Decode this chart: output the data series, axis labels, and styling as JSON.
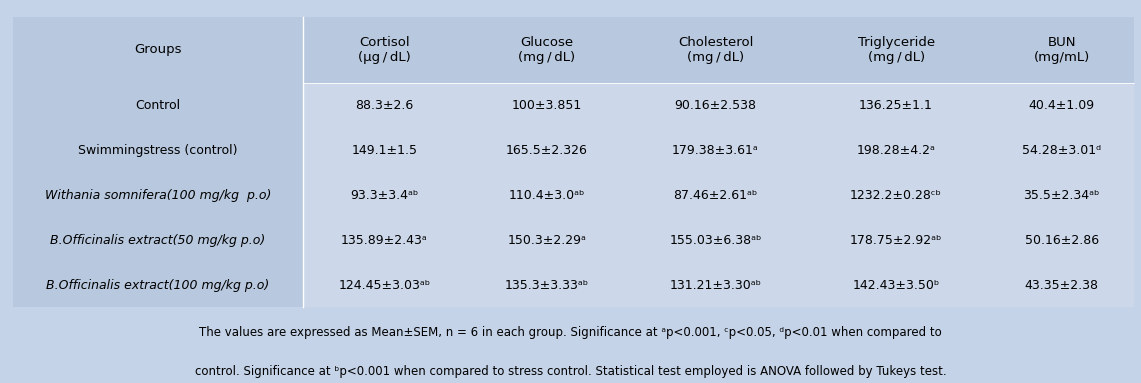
{
  "background_color": "#c5d3e8",
  "table_bg_color": "#b8c8de",
  "data_bg_color": "#ccd8ea",
  "figsize": [
    11.41,
    3.83
  ],
  "dpi": 100,
  "col_headers": [
    "Groups",
    "Cortisol\n(μg / dL)",
    "Glucose\n(mg / dL)",
    "Cholesterol\n(mg / dL)",
    "Triglyceride\n(mg / dL)",
    "BUN\n(mg/mL)"
  ],
  "rows": [
    {
      "group": "Control",
      "group_italic": false,
      "group_underline": false,
      "cortisol": "88.3±2.6",
      "glucose": "100±3.851",
      "cholesterol": "90.16±2.538",
      "triglyceride": "136.25±1.1",
      "bun": "40.4±1.09"
    },
    {
      "group": "Swimmingstress (control)",
      "group_italic": false,
      "group_underline": false,
      "cortisol": "149.1±1.5",
      "glucose": "165.5±2.326",
      "cholesterol": "179.38±3.61ᵃ",
      "triglyceride": "198.28±4.2ᵃ",
      "bun": "54.28±3.01ᵈ"
    },
    {
      "group": "Withania somnifera(100 mg/kg  p.o)",
      "group_italic": true,
      "group_underline": false,
      "cortisol": "93.3±3.4ᵃᵇ",
      "glucose": "110.4±3.0ᵃᵇ",
      "cholesterol": "87.46±2.61ᵃᵇ",
      "triglyceride": "1232.2±0.28ᶜᵇ",
      "bun": "35.5±2.34ᵃᵇ"
    },
    {
      "group": "B.Officinalis extract(50 mg/kg p.o)",
      "group_italic": true,
      "group_underline": true,
      "cortisol": "135.89±2.43ᵃ",
      "glucose": "150.3±2.29ᵃ",
      "cholesterol": "155.03±6.38ᵃᵇ",
      "triglyceride": "178.75±2.92ᵃᵇ",
      "bun": "50.16±2.86"
    },
    {
      "group": "B.Officinalis extract(100 mg/kg p.o)",
      "group_italic": true,
      "group_underline": true,
      "cortisol": "124.45±3.03ᵃᵇ",
      "glucose": "135.3±3.33ᵃᵇ",
      "cholesterol": "131.21±3.30ᵃᵇ",
      "triglyceride": "142.43±3.50ᵇ",
      "bun": "43.35±2.38"
    }
  ],
  "footnote_lines": [
    "The values are expressed as Mean±SEM, n = 6 in each group. Significance at ᵃp<0.001, ᶜp<0.05, ᵈp<0.01 when compared to",
    "control. Significance at ᵇp<0.001 when compared to stress control. Statistical test employed is ANOVA followed by Tukeys test."
  ],
  "header_fontsize": 9.5,
  "cell_fontsize": 9,
  "group_col_fontsize": 9,
  "footnote_fontsize": 8.5,
  "font_family": "DejaVu Sans"
}
